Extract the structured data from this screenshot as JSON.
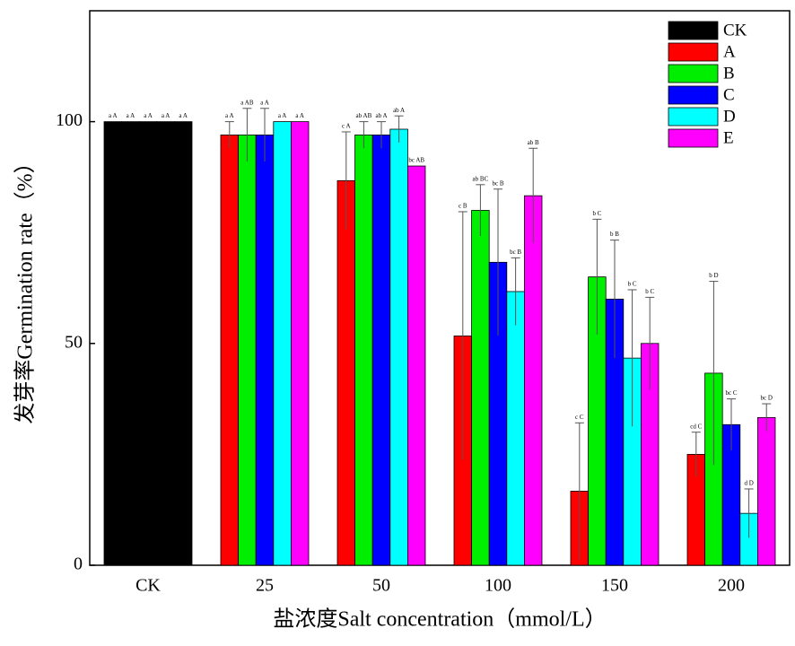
{
  "chart_data": {
    "type": "bar",
    "xlabel": "盐浓度Salt concentration（mmol/L）",
    "ylabel": "发芽率Germination rate（%）",
    "categories": [
      "CK",
      "25",
      "50",
      "100",
      "150",
      "200"
    ],
    "control": {
      "name": "CK",
      "color": "#000000"
    },
    "series": [
      {
        "name": "A",
        "color": "#ff0000",
        "values": [
          100,
          97,
          86.7,
          51.7,
          16.7,
          25
        ],
        "errors": [
          0,
          3,
          11,
          28,
          15.4,
          5
        ],
        "annotations": [
          "a A",
          "a A",
          "c A",
          "c B",
          "c C",
          "cd C"
        ]
      },
      {
        "name": "B",
        "color": "#00ee00",
        "values": [
          100,
          97,
          97,
          80,
          65,
          43.3
        ],
        "errors": [
          0,
          6,
          3,
          5.8,
          13,
          20.7
        ],
        "annotations": [
          "a A",
          "a AB",
          "ab AB",
          "ab BC",
          "b C",
          "b D"
        ]
      },
      {
        "name": "C",
        "color": "#0000ff",
        "values": [
          100,
          97,
          97,
          68.3,
          60,
          31.7
        ],
        "errors": [
          0,
          6,
          3,
          16.5,
          13.3,
          5.8
        ],
        "annotations": [
          "a A",
          "a A",
          "ab A",
          "bc B",
          "b B",
          "bc C"
        ]
      },
      {
        "name": "D",
        "color": "#00ffff",
        "values": [
          100,
          100,
          98.3,
          61.7,
          46.7,
          11.7
        ],
        "errors": [
          0,
          0,
          3,
          7.6,
          15.4,
          5.5
        ],
        "annotations": [
          "a A",
          "a A",
          "ab A",
          "bc B",
          "b C",
          "d D"
        ]
      },
      {
        "name": "E",
        "color": "#ff00ff",
        "values": [
          100,
          100,
          90,
          83.3,
          50,
          33.3
        ],
        "errors": [
          0,
          0,
          0,
          10.7,
          10.4,
          3.1
        ],
        "annotations": [
          "a A",
          "a A",
          "bc AB",
          "ab B",
          "b C",
          "bc D"
        ]
      }
    ],
    "ylim": [
      0,
      125
    ],
    "yticks": [
      0,
      50,
      100
    ],
    "legend": "upper right"
  }
}
